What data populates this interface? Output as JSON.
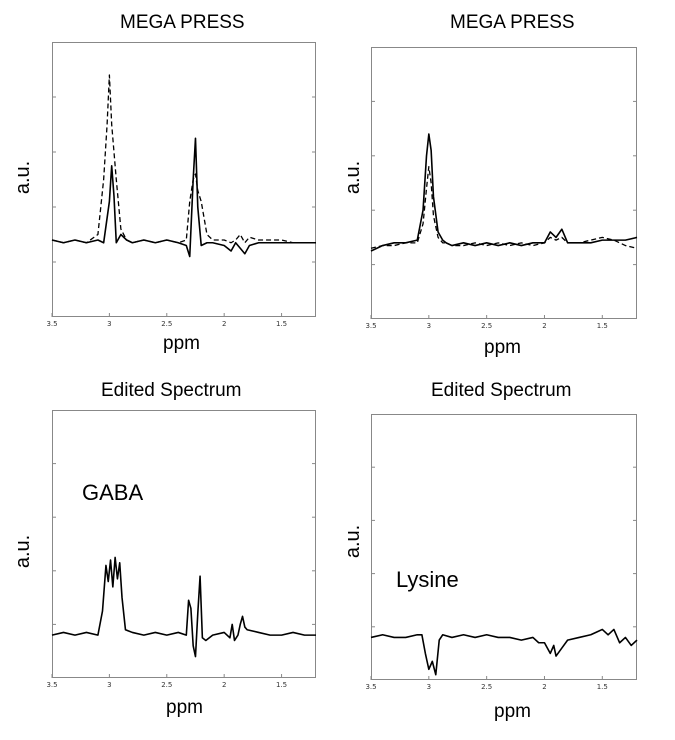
{
  "chart_data": [
    {
      "type": "line",
      "title": "MEGA PRESS",
      "xlabel": "ppm",
      "ylabel": "a.u.",
      "xlim": [
        3.5,
        1.2
      ],
      "x_reversed": true,
      "ylim": [
        0,
        1
      ],
      "x_ticks": [
        "3.5",
        "3",
        "2.5",
        "2",
        "1.5"
      ],
      "annotation": "",
      "series": [
        {
          "style": "solid",
          "x": [
            3.5,
            3.4,
            3.3,
            3.2,
            3.1,
            3.05,
            3.0,
            2.98,
            2.96,
            2.94,
            2.9,
            2.85,
            2.8,
            2.7,
            2.6,
            2.5,
            2.4,
            2.33,
            2.3,
            2.27,
            2.25,
            2.23,
            2.2,
            2.15,
            2.1,
            2.0,
            1.94,
            1.9,
            1.86,
            1.82,
            1.78,
            1.7,
            1.6,
            1.5,
            1.4,
            1.3,
            1.2
          ],
          "y": [
            0.28,
            0.27,
            0.28,
            0.27,
            0.28,
            0.27,
            0.42,
            0.55,
            0.44,
            0.27,
            0.3,
            0.28,
            0.27,
            0.28,
            0.27,
            0.28,
            0.27,
            0.26,
            0.22,
            0.5,
            0.65,
            0.4,
            0.26,
            0.27,
            0.27,
            0.26,
            0.24,
            0.27,
            0.25,
            0.23,
            0.26,
            0.27,
            0.27,
            0.27,
            0.27,
            0.27,
            0.27
          ]
        },
        {
          "style": "dashed",
          "x": [
            3.5,
            3.4,
            3.3,
            3.2,
            3.1,
            3.05,
            3.02,
            3.0,
            2.98,
            2.96,
            2.94,
            2.9,
            2.85,
            2.8,
            2.7,
            2.6,
            2.5,
            2.4,
            2.33,
            2.3,
            2.27,
            2.25,
            2.23,
            2.2,
            2.15,
            2.1,
            2.0,
            1.94,
            1.9,
            1.86,
            1.82,
            1.78,
            1.7,
            1.6,
            1.5,
            1.4,
            1.3,
            1.2
          ],
          "y": [
            0.28,
            0.27,
            0.28,
            0.27,
            0.3,
            0.5,
            0.7,
            0.88,
            0.7,
            0.6,
            0.5,
            0.32,
            0.28,
            0.27,
            0.28,
            0.27,
            0.28,
            0.27,
            0.28,
            0.42,
            0.5,
            0.52,
            0.46,
            0.42,
            0.3,
            0.28,
            0.28,
            0.27,
            0.28,
            0.3,
            0.27,
            0.29,
            0.28,
            0.28,
            0.28,
            0.27,
            0.27,
            0.27
          ]
        }
      ]
    },
    {
      "type": "line",
      "title": "MEGA PRESS",
      "xlabel": "ppm",
      "ylabel": "a.u.",
      "xlim": [
        3.5,
        1.2
      ],
      "x_reversed": true,
      "ylim": [
        0,
        1
      ],
      "x_ticks": [
        "3.5",
        "3",
        "2.5",
        "2",
        "1.5"
      ],
      "annotation": "",
      "series": [
        {
          "style": "solid",
          "x": [
            3.5,
            3.4,
            3.3,
            3.2,
            3.1,
            3.05,
            3.02,
            3.0,
            2.98,
            2.96,
            2.92,
            2.88,
            2.85,
            2.8,
            2.7,
            2.6,
            2.5,
            2.4,
            2.3,
            2.2,
            2.1,
            2.0,
            1.95,
            1.9,
            1.85,
            1.8,
            1.7,
            1.6,
            1.5,
            1.4,
            1.3,
            1.2
          ],
          "y": [
            0.25,
            0.27,
            0.28,
            0.28,
            0.29,
            0.4,
            0.6,
            0.68,
            0.62,
            0.45,
            0.32,
            0.29,
            0.28,
            0.27,
            0.28,
            0.27,
            0.28,
            0.27,
            0.28,
            0.27,
            0.28,
            0.28,
            0.32,
            0.3,
            0.33,
            0.28,
            0.28,
            0.28,
            0.29,
            0.29,
            0.29,
            0.3
          ]
        },
        {
          "style": "dashed",
          "x": [
            3.5,
            3.4,
            3.3,
            3.2,
            3.1,
            3.05,
            3.02,
            3.0,
            2.98,
            2.96,
            2.92,
            2.88,
            2.85,
            2.8,
            2.7,
            2.6,
            2.5,
            2.4,
            2.3,
            2.2,
            2.1,
            2.0,
            1.95,
            1.9,
            1.85,
            1.8,
            1.7,
            1.6,
            1.5,
            1.4,
            1.3,
            1.2
          ],
          "y": [
            0.26,
            0.27,
            0.27,
            0.28,
            0.28,
            0.35,
            0.48,
            0.56,
            0.5,
            0.38,
            0.3,
            0.28,
            0.28,
            0.27,
            0.27,
            0.28,
            0.27,
            0.28,
            0.27,
            0.28,
            0.27,
            0.28,
            0.3,
            0.29,
            0.3,
            0.28,
            0.28,
            0.29,
            0.3,
            0.29,
            0.27,
            0.26
          ]
        }
      ]
    },
    {
      "type": "line",
      "title": "Edited Spectrum",
      "xlabel": "ppm",
      "ylabel": "a.u.",
      "xlim": [
        3.5,
        1.2
      ],
      "x_reversed": true,
      "ylim": [
        0,
        1
      ],
      "x_ticks": [
        "3.5",
        "3",
        "2.5",
        "2",
        "1.5"
      ],
      "annotation": "GABA",
      "series": [
        {
          "style": "solid",
          "x": [
            3.5,
            3.4,
            3.3,
            3.2,
            3.1,
            3.06,
            3.03,
            3.01,
            2.99,
            2.97,
            2.95,
            2.93,
            2.91,
            2.89,
            2.86,
            2.8,
            2.7,
            2.6,
            2.5,
            2.4,
            2.33,
            2.31,
            2.29,
            2.27,
            2.25,
            2.23,
            2.21,
            2.19,
            2.16,
            2.1,
            2.0,
            1.95,
            1.93,
            1.91,
            1.88,
            1.86,
            1.84,
            1.82,
            1.8,
            1.7,
            1.6,
            1.5,
            1.4,
            1.3,
            1.2
          ],
          "y": [
            0.16,
            0.17,
            0.16,
            0.17,
            0.16,
            0.25,
            0.42,
            0.36,
            0.44,
            0.34,
            0.45,
            0.37,
            0.43,
            0.3,
            0.18,
            0.17,
            0.16,
            0.17,
            0.16,
            0.17,
            0.16,
            0.29,
            0.26,
            0.12,
            0.08,
            0.24,
            0.38,
            0.15,
            0.14,
            0.16,
            0.17,
            0.15,
            0.2,
            0.14,
            0.16,
            0.2,
            0.23,
            0.19,
            0.18,
            0.17,
            0.16,
            0.16,
            0.17,
            0.16,
            0.16
          ]
        }
      ]
    },
    {
      "type": "line",
      "title": "Edited Spectrum",
      "xlabel": "ppm",
      "ylabel": "a.u.",
      "xlim": [
        3.5,
        1.2
      ],
      "x_reversed": true,
      "ylim": [
        0,
        1
      ],
      "x_ticks": [
        "3.5",
        "3",
        "2.5",
        "2",
        "1.5"
      ],
      "annotation": "Lysine",
      "series": [
        {
          "style": "solid",
          "x": [
            3.5,
            3.4,
            3.3,
            3.2,
            3.1,
            3.06,
            3.03,
            3.0,
            2.97,
            2.94,
            2.91,
            2.88,
            2.8,
            2.7,
            2.6,
            2.5,
            2.4,
            2.3,
            2.2,
            2.1,
            2.05,
            2.0,
            1.95,
            1.92,
            1.9,
            1.85,
            1.8,
            1.7,
            1.6,
            1.55,
            1.5,
            1.45,
            1.4,
            1.35,
            1.3,
            1.25,
            1.2
          ],
          "y": [
            0.16,
            0.17,
            0.16,
            0.16,
            0.17,
            0.17,
            0.1,
            0.04,
            0.07,
            0.02,
            0.15,
            0.17,
            0.16,
            0.17,
            0.16,
            0.17,
            0.16,
            0.16,
            0.15,
            0.16,
            0.14,
            0.14,
            0.1,
            0.13,
            0.09,
            0.12,
            0.15,
            0.16,
            0.17,
            0.18,
            0.19,
            0.17,
            0.19,
            0.14,
            0.16,
            0.13,
            0.15
          ]
        }
      ]
    }
  ]
}
